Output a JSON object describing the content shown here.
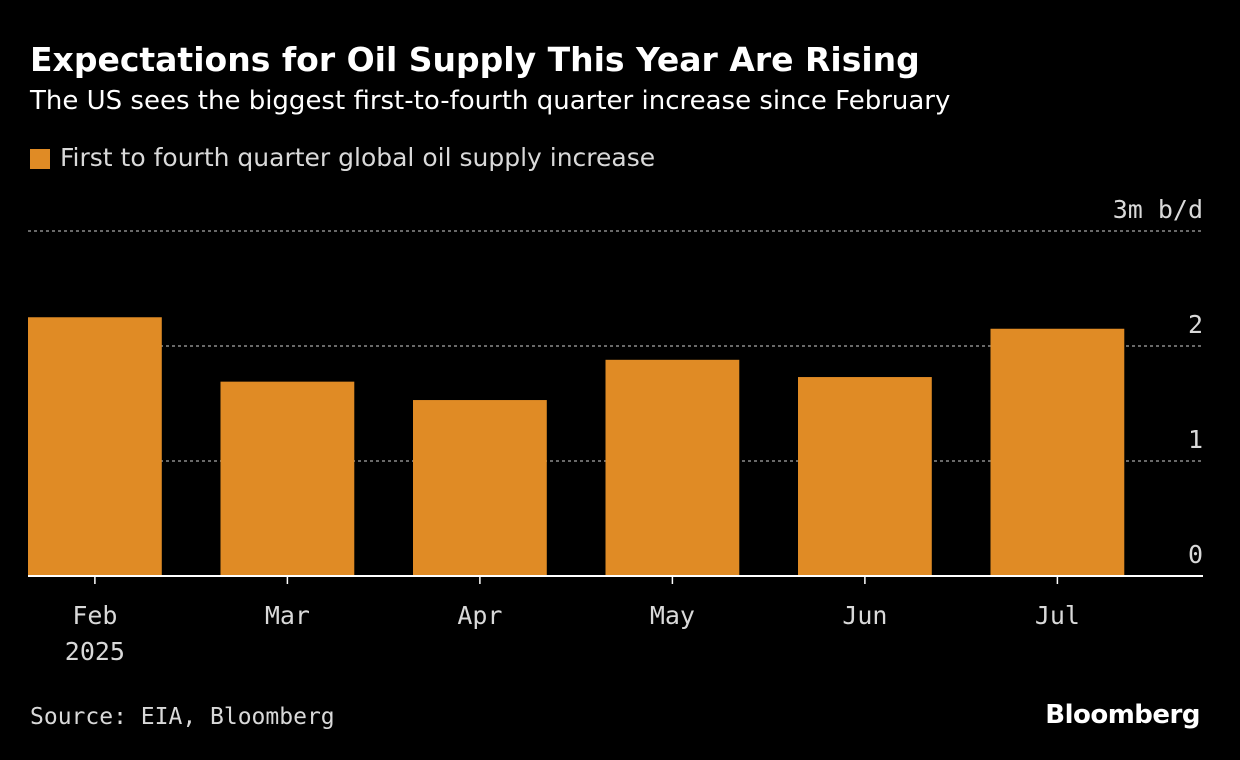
{
  "chart_data": {
    "type": "bar",
    "title": "Expectations for Oil Supply This Year Are Rising",
    "subtitle": "The US sees the biggest first-to-fourth quarter increase since February",
    "legend": [
      {
        "label": "First to fourth quarter global oil supply increase",
        "color": "#e08b25"
      }
    ],
    "categories": [
      "Feb",
      "Mar",
      "Apr",
      "May",
      "Jun",
      "Jul"
    ],
    "category_sublabels": [
      "2025",
      "",
      "",
      "",
      "",
      ""
    ],
    "values": [
      2.25,
      1.69,
      1.53,
      1.88,
      1.73,
      2.15
    ],
    "ylim": [
      0,
      3
    ],
    "yticks": [
      {
        "value": 0,
        "label": "0"
      },
      {
        "value": 1,
        "label": "1"
      },
      {
        "value": 2,
        "label": "2"
      },
      {
        "value": 3,
        "label": "3m b/d"
      }
    ],
    "xlabel": "",
    "ylabel": "",
    "grid": true,
    "axis_position": "right"
  },
  "source": "Source: EIA, Bloomberg",
  "brand": "Bloomberg",
  "colors": {
    "background": "#000000",
    "bar": "#e08b25",
    "grid": "#8c8c8c",
    "axis": "#ffffff",
    "tick_text": "#d9d9d9"
  }
}
